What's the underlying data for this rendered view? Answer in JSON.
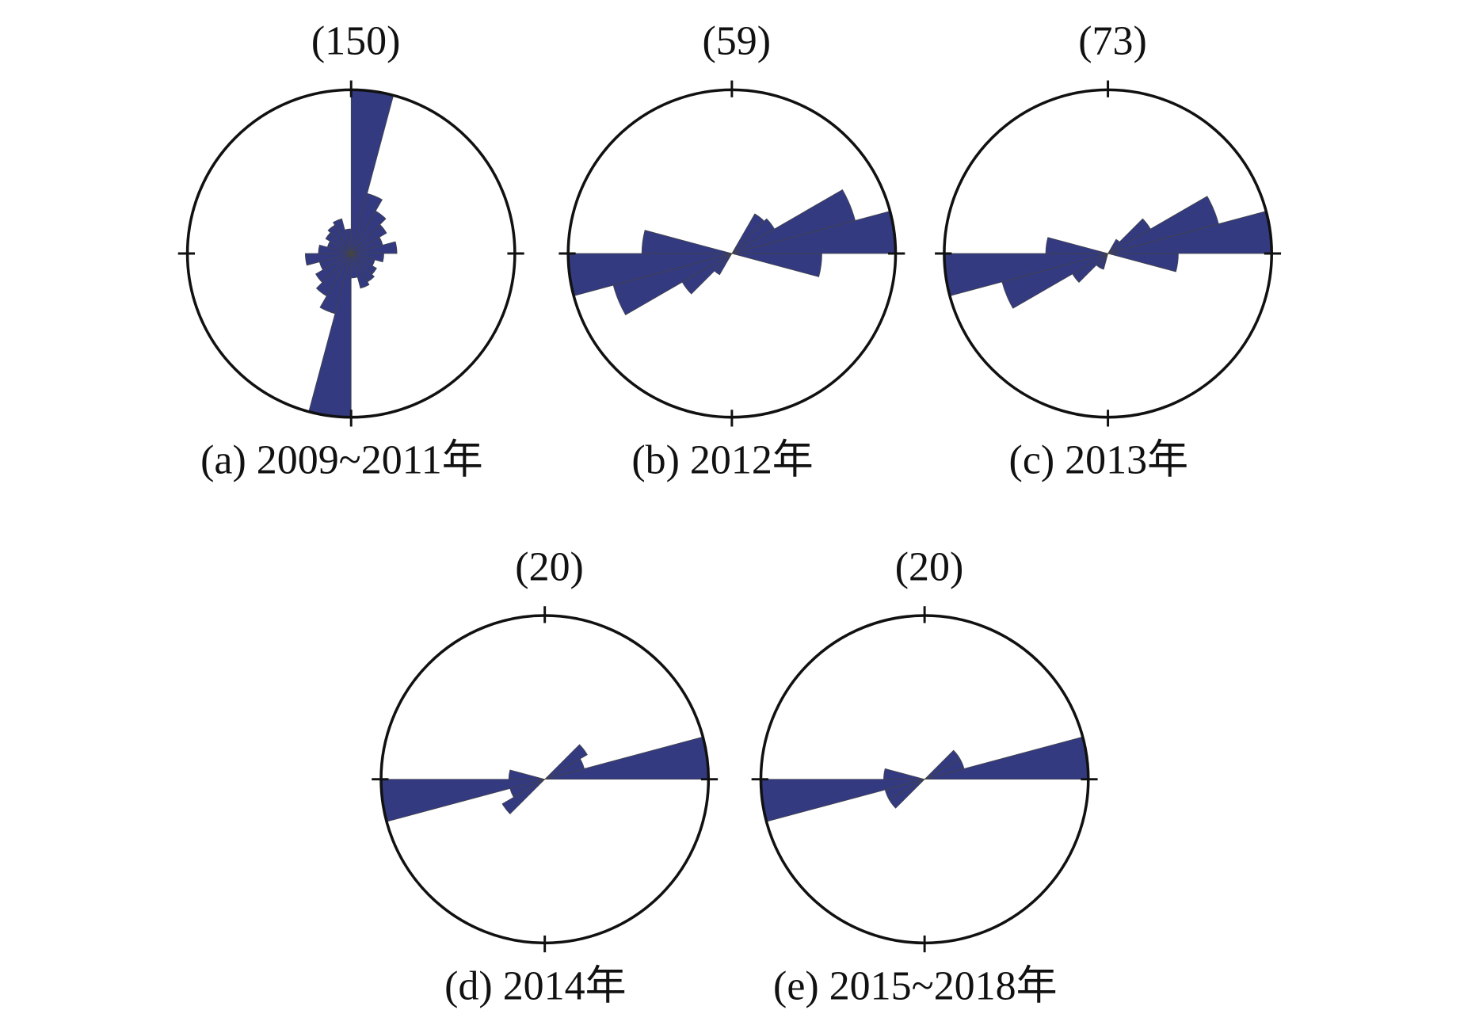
{
  "chart_data": [
    {
      "type": "rose",
      "title": "(150)",
      "caption": "(a) 2009~2011年",
      "color": "#333a80",
      "rlim": [
        0,
        1
      ],
      "directions": [
        0,
        15,
        30,
        45,
        60,
        75,
        90,
        105,
        120,
        135,
        150,
        165,
        180,
        195,
        210,
        225,
        240,
        255,
        270,
        285,
        300,
        315,
        330,
        345
      ],
      "values": [
        1.0,
        0.38,
        0.3,
        0.25,
        0.2,
        0.28,
        0.2,
        0.15,
        0.18,
        0.2,
        0.22,
        0.15,
        1.0,
        0.38,
        0.3,
        0.25,
        0.2,
        0.28,
        0.2,
        0.15,
        0.18,
        0.2,
        0.22,
        0.15
      ]
    },
    {
      "type": "rose",
      "title": "(59)",
      "caption": "(b) 2012年",
      "color": "#333a80",
      "rlim": [
        0,
        1
      ],
      "directions": [
        0,
        15,
        30,
        45,
        60,
        75,
        90,
        105,
        120,
        135,
        150,
        165,
        180,
        195,
        210,
        225,
        240,
        255,
        270,
        285,
        300,
        315,
        330,
        345
      ],
      "values": [
        0,
        0,
        0.28,
        0.3,
        0.78,
        1.0,
        0.55,
        0,
        0,
        0,
        0,
        0,
        0,
        0,
        0.15,
        0.35,
        0.75,
        1.0,
        0.55,
        0,
        0,
        0,
        0,
        0
      ]
    },
    {
      "type": "rose",
      "title": "(73)",
      "caption": "(c) 2013年",
      "color": "#333a80",
      "rlim": [
        0,
        1
      ],
      "directions": [
        0,
        15,
        30,
        45,
        60,
        75,
        90,
        105,
        120,
        135,
        150,
        165,
        180,
        195,
        210,
        225,
        240,
        255,
        270,
        285,
        300,
        315,
        330,
        345
      ],
      "values": [
        0,
        0,
        0.1,
        0.3,
        0.7,
        1.0,
        0.43,
        0,
        0,
        0,
        0,
        0,
        0,
        0.1,
        0.1,
        0.25,
        0.67,
        1.0,
        0.38,
        0,
        0,
        0,
        0,
        0
      ]
    },
    {
      "type": "rose",
      "title": "(20)",
      "caption": "(d) 2014年",
      "color": "#333a80",
      "rlim": [
        0,
        1
      ],
      "directions": [
        0,
        15,
        30,
        45,
        60,
        75,
        90,
        105,
        120,
        135,
        150,
        165,
        180,
        195,
        210,
        225,
        240,
        255,
        270,
        285,
        300,
        315,
        330,
        345
      ],
      "values": [
        0,
        0,
        0,
        0.3,
        0.25,
        1.0,
        0,
        0,
        0,
        0,
        0,
        0,
        0,
        0,
        0,
        0.3,
        0.22,
        1.0,
        0.22,
        0,
        0,
        0,
        0,
        0
      ]
    },
    {
      "type": "rose",
      "title": "(20)",
      "caption": "(e) 2015~2018年",
      "color": "#333a80",
      "rlim": [
        0,
        1
      ],
      "directions": [
        0,
        15,
        30,
        45,
        60,
        75,
        90,
        105,
        120,
        135,
        150,
        165,
        180,
        195,
        210,
        225,
        240,
        255,
        270,
        285,
        300,
        315,
        330,
        345
      ],
      "values": [
        0,
        0,
        0,
        0.25,
        0.25,
        1.0,
        0,
        0,
        0,
        0,
        0,
        0,
        0,
        0,
        0,
        0.25,
        0.25,
        1.0,
        0.25,
        0,
        0,
        0,
        0,
        0
      ]
    }
  ]
}
